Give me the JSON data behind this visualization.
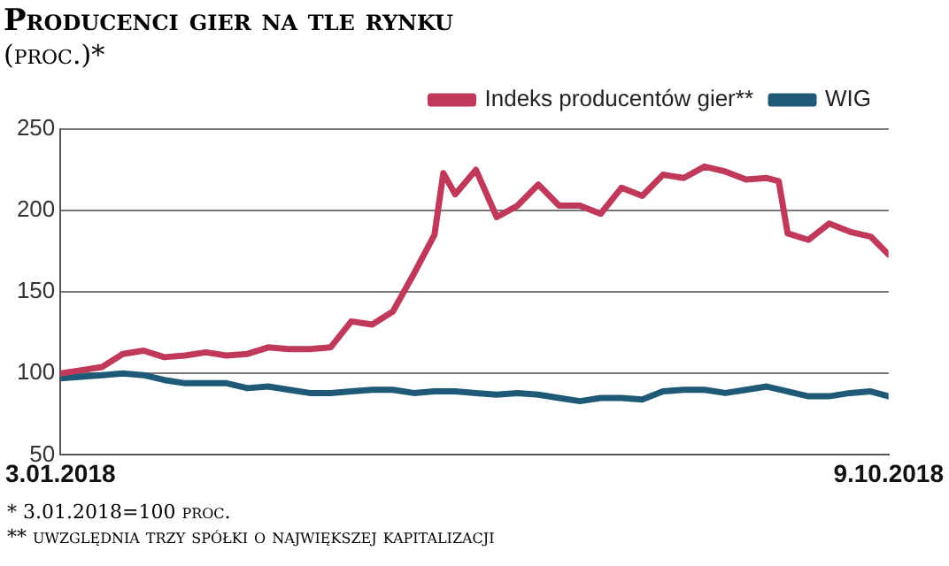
{
  "chart_data": {
    "type": "line",
    "title": "Producenci gier na tle rynku",
    "subtitle": "(proc.)*",
    "annotations": [
      "* 3.01.2018=100 proc.",
      "** uwzględnia trzy spółki o największej kapitalizacji"
    ],
    "series": [
      {
        "name": "Indeks producentów gier**",
        "color": "#c0395a",
        "x": [
          "2018-01-03",
          "2018-01-10",
          "2018-01-17",
          "2018-01-24",
          "2018-01-31",
          "2018-02-07",
          "2018-02-14",
          "2018-02-21",
          "2018-02-28",
          "2018-03-07",
          "2018-03-14",
          "2018-03-21",
          "2018-03-28",
          "2018-04-04",
          "2018-04-11",
          "2018-04-18",
          "2018-04-25",
          "2018-05-02",
          "2018-05-09",
          "2018-05-12",
          "2018-05-16",
          "2018-05-23",
          "2018-05-30",
          "2018-06-06",
          "2018-06-13",
          "2018-06-20",
          "2018-06-27",
          "2018-07-04",
          "2018-07-11",
          "2018-07-18",
          "2018-07-25",
          "2018-08-01",
          "2018-08-08",
          "2018-08-15",
          "2018-08-22",
          "2018-08-29",
          "2018-09-02",
          "2018-09-05",
          "2018-09-12",
          "2018-09-19",
          "2018-09-26",
          "2018-10-03",
          "2018-10-09"
        ],
        "values": [
          100,
          102,
          104,
          112,
          114,
          110,
          111,
          113,
          111,
          112,
          116,
          115,
          115,
          116,
          132,
          130,
          138,
          161,
          185,
          223,
          210,
          225,
          196,
          203,
          216,
          203,
          203,
          198,
          214,
          209,
          222,
          220,
          227,
          224,
          219,
          220,
          218,
          186,
          182,
          192,
          187,
          184,
          173
        ]
      },
      {
        "name": "WIG",
        "color": "#1e5a78",
        "x": [
          "2018-01-03",
          "2018-01-10",
          "2018-01-17",
          "2018-01-24",
          "2018-01-31",
          "2018-02-07",
          "2018-02-14",
          "2018-02-21",
          "2018-02-28",
          "2018-03-07",
          "2018-03-14",
          "2018-03-21",
          "2018-03-28",
          "2018-04-04",
          "2018-04-11",
          "2018-04-18",
          "2018-04-25",
          "2018-05-02",
          "2018-05-09",
          "2018-05-16",
          "2018-05-23",
          "2018-05-30",
          "2018-06-06",
          "2018-06-13",
          "2018-06-20",
          "2018-06-27",
          "2018-07-04",
          "2018-07-11",
          "2018-07-18",
          "2018-07-25",
          "2018-08-01",
          "2018-08-08",
          "2018-08-15",
          "2018-08-22",
          "2018-08-29",
          "2018-09-05",
          "2018-09-12",
          "2018-09-19",
          "2018-09-26",
          "2018-10-03",
          "2018-10-09"
        ],
        "values": [
          97,
          98,
          99,
          100,
          99,
          96,
          94,
          94,
          94,
          91,
          92,
          90,
          88,
          88,
          89,
          90,
          90,
          88,
          89,
          89,
          88,
          87,
          88,
          87,
          85,
          83,
          85,
          85,
          84,
          89,
          90,
          90,
          88,
          90,
          92,
          89,
          86,
          86,
          88,
          89,
          86
        ]
      }
    ],
    "xlim": [
      "2018-01-03",
      "2018-10-09"
    ],
    "xticks": [
      {
        "value": "2018-01-03",
        "label": "3.01.2018"
      },
      {
        "value": "2018-10-09",
        "label": "9.10.2018"
      }
    ],
    "ylim": [
      50,
      250
    ],
    "yticks": [
      50,
      100,
      150,
      200,
      250
    ],
    "grid": "y",
    "legend": "top right",
    "marker": "none",
    "line_style": "solid"
  }
}
